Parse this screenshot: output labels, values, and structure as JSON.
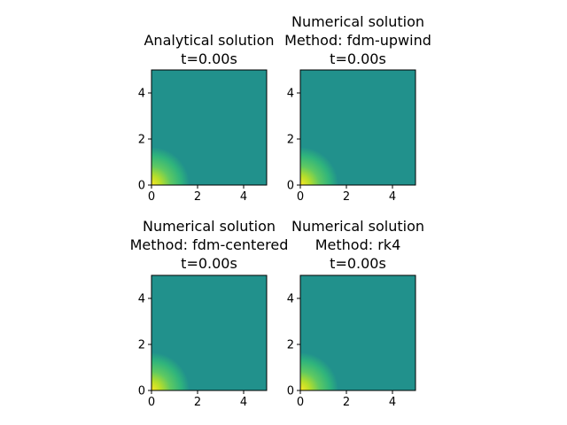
{
  "figure": {
    "background": "#ffffff",
    "colormap": "viridis",
    "colors": {
      "field_low": "#21918c",
      "field_peak": "#fde725",
      "axis": "#000000"
    }
  },
  "chart_data": [
    {
      "type": "heatmap",
      "title_lines": [
        "Analytical solution",
        "t=0.00s"
      ],
      "xlim": [
        0,
        5
      ],
      "ylim": [
        0,
        5
      ],
      "xticks": [
        "0",
        "2",
        "4"
      ],
      "yticks": [
        "0",
        "2",
        "4"
      ],
      "field": {
        "peak_x": 0,
        "peak_y": 0,
        "peak_value": 1.0,
        "background_value": 0.5
      }
    },
    {
      "type": "heatmap",
      "title_lines": [
        "Numerical solution",
        "Method: fdm-upwind",
        "t=0.00s"
      ],
      "xlim": [
        0,
        5
      ],
      "ylim": [
        0,
        5
      ],
      "xticks": [
        "0",
        "2",
        "4"
      ],
      "yticks": [
        "0",
        "2",
        "4"
      ],
      "field": {
        "peak_x": 0,
        "peak_y": 0,
        "peak_value": 1.0,
        "background_value": 0.5
      }
    },
    {
      "type": "heatmap",
      "title_lines": [
        "Numerical solution",
        "Method: fdm-centered",
        "t=0.00s"
      ],
      "xlim": [
        0,
        5
      ],
      "ylim": [
        0,
        5
      ],
      "xticks": [
        "0",
        "2",
        "4"
      ],
      "yticks": [
        "0",
        "2",
        "4"
      ],
      "field": {
        "peak_x": 0,
        "peak_y": 0,
        "peak_value": 1.0,
        "background_value": 0.5
      }
    },
    {
      "type": "heatmap",
      "title_lines": [
        "Numerical solution",
        "Method: rk4",
        "t=0.00s"
      ],
      "xlim": [
        0,
        5
      ],
      "ylim": [
        0,
        5
      ],
      "xticks": [
        "0",
        "2",
        "4"
      ],
      "yticks": [
        "0",
        "2",
        "4"
      ],
      "field": {
        "peak_x": 0,
        "peak_y": 0,
        "peak_value": 1.0,
        "background_value": 0.5
      }
    }
  ]
}
